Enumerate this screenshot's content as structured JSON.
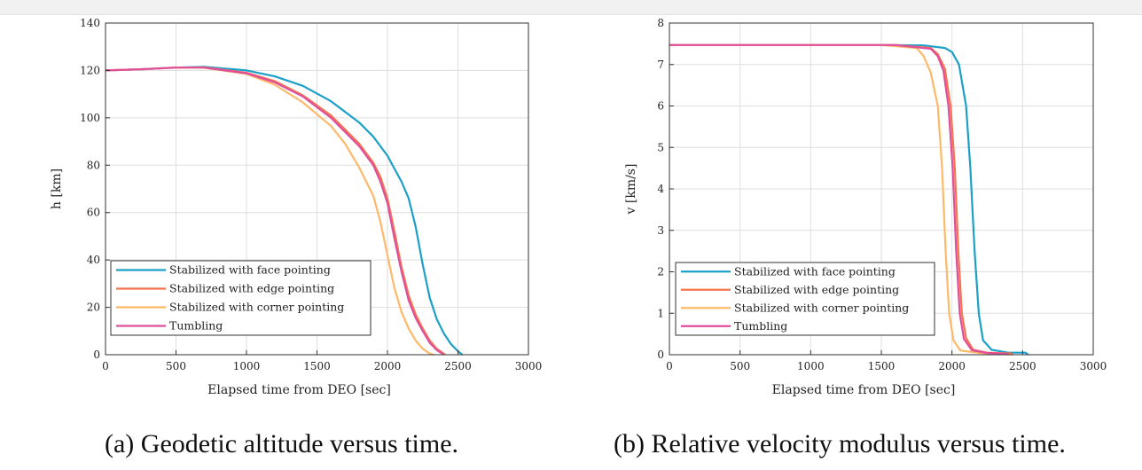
{
  "captions": {
    "a": "(a) Geodetic altitude versus time.",
    "b": "(b) Relative velocity modulus versus time."
  },
  "legend_entries": [
    {
      "name": "Stabilized with face pointing",
      "color": "#1ca0c8"
    },
    {
      "name": "Stabilized with edge pointing",
      "color": "#f4744e"
    },
    {
      "name": "Stabilized with corner pointing",
      "color": "#fdb968"
    },
    {
      "name": "Tumbling",
      "color": "#df4f9c"
    }
  ],
  "chart_data": [
    {
      "type": "line",
      "xlabel": "Elapsed time from DEO [sec]",
      "ylabel": "h [km]",
      "xlim": [
        0,
        3000
      ],
      "ylim": [
        0,
        140
      ],
      "xticks": [
        0,
        500,
        1000,
        1500,
        2000,
        2500,
        3000
      ],
      "yticks": [
        0,
        20,
        40,
        60,
        80,
        100,
        120,
        140
      ],
      "grid": true,
      "legend_position": "bottom-left",
      "series": [
        {
          "name": "Stabilized with face pointing",
          "color": "#1ca0c8",
          "points": [
            [
              0,
              120
            ],
            [
              250,
              120.5
            ],
            [
              500,
              121.2
            ],
            [
              700,
              121.5
            ],
            [
              1000,
              120
            ],
            [
              1200,
              117.5
            ],
            [
              1400,
              113.5
            ],
            [
              1600,
              107
            ],
            [
              1800,
              98
            ],
            [
              1900,
              92
            ],
            [
              2000,
              84
            ],
            [
              2100,
              73
            ],
            [
              2150,
              66
            ],
            [
              2200,
              54
            ],
            [
              2250,
              38
            ],
            [
              2300,
              24
            ],
            [
              2350,
              15
            ],
            [
              2400,
              9
            ],
            [
              2450,
              4.5
            ],
            [
              2500,
              1.5
            ],
            [
              2530,
              0
            ]
          ]
        },
        {
          "name": "Stabilized with edge pointing",
          "color": "#f4744e",
          "points": [
            [
              0,
              120
            ],
            [
              250,
              120.5
            ],
            [
              500,
              121.2
            ],
            [
              700,
              121.3
            ],
            [
              1000,
              119
            ],
            [
              1200,
              115.5
            ],
            [
              1400,
              109.5
            ],
            [
              1600,
              101
            ],
            [
              1800,
              89
            ],
            [
              1900,
              81
            ],
            [
              1950,
              75
            ],
            [
              2000,
              66
            ],
            [
              2050,
              52
            ],
            [
              2100,
              37
            ],
            [
              2150,
              25
            ],
            [
              2200,
              17
            ],
            [
              2250,
              11
            ],
            [
              2300,
              6
            ],
            [
              2350,
              2.5
            ],
            [
              2410,
              0
            ]
          ]
        },
        {
          "name": "Stabilized with corner pointing",
          "color": "#fdb968",
          "points": [
            [
              0,
              120
            ],
            [
              250,
              120.5
            ],
            [
              500,
              121.2
            ],
            [
              700,
              121.1
            ],
            [
              1000,
              118.5
            ],
            [
              1200,
              114
            ],
            [
              1400,
              106.5
            ],
            [
              1600,
              96.5
            ],
            [
              1700,
              89
            ],
            [
              1800,
              79
            ],
            [
              1900,
              67
            ],
            [
              1950,
              56
            ],
            [
              2000,
              42
            ],
            [
              2050,
              28
            ],
            [
              2100,
              18
            ],
            [
              2150,
              11
            ],
            [
              2200,
              6
            ],
            [
              2250,
              2.5
            ],
            [
              2300,
              0.5
            ],
            [
              2330,
              0
            ]
          ]
        },
        {
          "name": "Tumbling",
          "color": "#df4f9c",
          "points": [
            [
              0,
              120
            ],
            [
              250,
              120.5
            ],
            [
              500,
              121.2
            ],
            [
              700,
              121.2
            ],
            [
              1000,
              118.8
            ],
            [
              1200,
              115
            ],
            [
              1400,
              109
            ],
            [
              1600,
              100
            ],
            [
              1800,
              88
            ],
            [
              1900,
              80
            ],
            [
              1950,
              73
            ],
            [
              2000,
              64
            ],
            [
              2050,
              49
            ],
            [
              2100,
              35
            ],
            [
              2150,
              23
            ],
            [
              2200,
              15.5
            ],
            [
              2250,
              10
            ],
            [
              2300,
              5
            ],
            [
              2350,
              2
            ],
            [
              2400,
              0
            ]
          ]
        }
      ]
    },
    {
      "type": "line",
      "xlabel": "Elapsed time from DEO [sec]",
      "ylabel": "v [km/s]",
      "xlim": [
        0,
        3000
      ],
      "ylim": [
        0,
        8
      ],
      "xticks": [
        0,
        500,
        1000,
        1500,
        2000,
        2500,
        3000
      ],
      "yticks": [
        0,
        1,
        2,
        3,
        4,
        5,
        6,
        7,
        8
      ],
      "grid": true,
      "legend_position": "bottom-left",
      "series": [
        {
          "name": "Stabilized with face pointing",
          "color": "#1ca0c8",
          "points": [
            [
              0,
              7.47
            ],
            [
              1500,
              7.47
            ],
            [
              1800,
              7.46
            ],
            [
              1950,
              7.4
            ],
            [
              2000,
              7.3
            ],
            [
              2050,
              7.0
            ],
            [
              2100,
              6.0
            ],
            [
              2130,
              4.5
            ],
            [
              2160,
              2.5
            ],
            [
              2190,
              1.0
            ],
            [
              2220,
              0.35
            ],
            [
              2280,
              0.12
            ],
            [
              2400,
              0.05
            ],
            [
              2520,
              0.05
            ],
            [
              2540,
              0
            ]
          ]
        },
        {
          "name": "Stabilized with edge pointing",
          "color": "#f4744e",
          "points": [
            [
              0,
              7.47
            ],
            [
              1600,
              7.47
            ],
            [
              1850,
              7.4
            ],
            [
              1900,
              7.25
            ],
            [
              1950,
              6.9
            ],
            [
              1990,
              6.0
            ],
            [
              2020,
              4.5
            ],
            [
              2045,
              2.5
            ],
            [
              2070,
              1.0
            ],
            [
              2100,
              0.4
            ],
            [
              2150,
              0.12
            ],
            [
              2250,
              0.05
            ],
            [
              2420,
              0.03
            ],
            [
              2430,
              0
            ]
          ]
        },
        {
          "name": "Stabilized with corner pointing",
          "color": "#fdb968",
          "points": [
            [
              0,
              7.47
            ],
            [
              1500,
              7.47
            ],
            [
              1750,
              7.4
            ],
            [
              1800,
              7.2
            ],
            [
              1850,
              6.8
            ],
            [
              1900,
              6.0
            ],
            [
              1930,
              4.5
            ],
            [
              1955,
              2.5
            ],
            [
              1980,
              1.0
            ],
            [
              2010,
              0.35
            ],
            [
              2060,
              0.1
            ],
            [
              2200,
              0.04
            ],
            [
              2330,
              0.02
            ],
            [
              2340,
              0
            ]
          ]
        },
        {
          "name": "Tumbling",
          "color": "#df4f9c",
          "points": [
            [
              0,
              7.47
            ],
            [
              1600,
              7.47
            ],
            [
              1850,
              7.38
            ],
            [
              1900,
              7.2
            ],
            [
              1940,
              6.85
            ],
            [
              1975,
              6.0
            ],
            [
              2005,
              4.5
            ],
            [
              2030,
              2.5
            ],
            [
              2055,
              1.0
            ],
            [
              2085,
              0.38
            ],
            [
              2140,
              0.11
            ],
            [
              2250,
              0.04
            ],
            [
              2390,
              0.02
            ],
            [
              2400,
              0
            ]
          ]
        }
      ]
    }
  ]
}
